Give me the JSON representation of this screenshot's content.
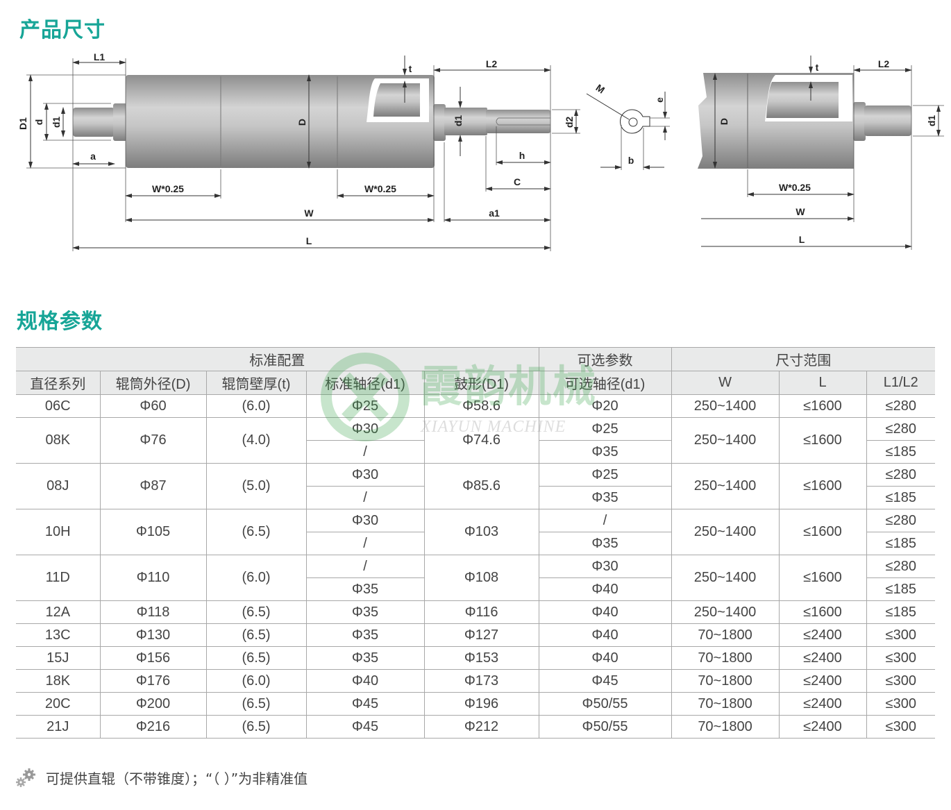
{
  "section_titles": {
    "dimensions": "产品尺寸",
    "specs": "规格参数"
  },
  "brand_color": "#17a597",
  "diagram_labels": {
    "L1": "L1",
    "D1": "D1",
    "d": "d",
    "d1": "d1",
    "a": "a",
    "D": "D",
    "t": "t",
    "L2": "L2",
    "d2": "d2",
    "h": "h",
    "C": "C",
    "W025": "W*0.25",
    "W": "W",
    "a1": "a1",
    "L": "L",
    "M": "M",
    "e": "e",
    "b": "b"
  },
  "watermark": {
    "logo_text": "霞韵机械",
    "logo_subtext": "XIAYUN MACHINE"
  },
  "table": {
    "groups": [
      {
        "label": "标准配置",
        "span": 5
      },
      {
        "label": "可选参数",
        "span": 1
      },
      {
        "label": "尺寸范围",
        "span": 3
      }
    ],
    "columns": [
      "直径系列",
      "辊筒外径(D)",
      "辊筒壁厚(t)",
      "标准轴径(d1)",
      "鼓形(D1)",
      "可选轴径(d1)",
      "W",
      "L",
      "L1/L2"
    ],
    "rows": [
      {
        "series": "06C",
        "D": "Φ60",
        "t": "(6.0)",
        "d1": [
          "Φ25"
        ],
        "D1": "Φ58.6",
        "opt": [
          "Φ20"
        ],
        "W": "250~1400",
        "L": "≤1600",
        "L12": [
          "≤280"
        ]
      },
      {
        "series": "08K",
        "D": "Φ76",
        "t": "(4.0)",
        "d1": [
          "Φ30",
          "/"
        ],
        "D1": "Φ74.6",
        "opt": [
          "Φ25",
          "Φ35"
        ],
        "W": "250~1400",
        "L": "≤1600",
        "L12": [
          "≤280",
          "≤185"
        ]
      },
      {
        "series": "08J",
        "D": "Φ87",
        "t": "(5.0)",
        "d1": [
          "Φ30",
          "/"
        ],
        "D1": "Φ85.6",
        "opt": [
          "Φ25",
          "Φ35"
        ],
        "W": "250~1400",
        "L": "≤1600",
        "L12": [
          "≤280",
          "≤185"
        ]
      },
      {
        "series": "10H",
        "D": "Φ105",
        "t": "(6.5)",
        "d1": [
          "Φ30",
          "/"
        ],
        "D1": "Φ103",
        "opt": [
          "/",
          "Φ35"
        ],
        "W": "250~1400",
        "L": "≤1600",
        "L12": [
          "≤280",
          "≤185"
        ]
      },
      {
        "series": "11D",
        "D": "Φ110",
        "t": "(6.0)",
        "d1": [
          "/",
          "Φ35"
        ],
        "D1": "Φ108",
        "opt": [
          "Φ30",
          "Φ40"
        ],
        "W": "250~1400",
        "L": "≤1600",
        "L12": [
          "≤280",
          "≤185"
        ]
      },
      {
        "series": "12A",
        "D": "Φ118",
        "t": "(6.5)",
        "d1": [
          "Φ35"
        ],
        "D1": "Φ116",
        "opt": [
          "Φ40"
        ],
        "W": "250~1400",
        "L": "≤1600",
        "L12": [
          "≤185"
        ]
      },
      {
        "series": "13C",
        "D": "Φ130",
        "t": "(6.5)",
        "d1": [
          "Φ35"
        ],
        "D1": "Φ127",
        "opt": [
          "Φ40"
        ],
        "W": "70~1800",
        "L": "≤2400",
        "L12": [
          "≤300"
        ]
      },
      {
        "series": "15J",
        "D": "Φ156",
        "t": "(6.5)",
        "d1": [
          "Φ35"
        ],
        "D1": "Φ153",
        "opt": [
          "Φ40"
        ],
        "W": "70~1800",
        "L": "≤2400",
        "L12": [
          "≤300"
        ]
      },
      {
        "series": "18K",
        "D": "Φ176",
        "t": "(6.0)",
        "d1": [
          "Φ40"
        ],
        "D1": "Φ173",
        "opt": [
          "Φ45"
        ],
        "W": "70~1800",
        "L": "≤2400",
        "L12": [
          "≤300"
        ]
      },
      {
        "series": "20C",
        "D": "Φ200",
        "t": "(6.5)",
        "d1": [
          "Φ45"
        ],
        "D1": "Φ196",
        "opt": [
          "Φ50/55"
        ],
        "W": "70~1800",
        "L": "≤2400",
        "L12": [
          "≤300"
        ]
      },
      {
        "series": "21J",
        "D": "Φ216",
        "t": "(6.5)",
        "d1": [
          "Φ45"
        ],
        "D1": "Φ212",
        "opt": [
          "Φ50/55"
        ],
        "W": "70~1800",
        "L": "≤2400",
        "L12": [
          "≤300"
        ]
      }
    ]
  },
  "note": {
    "icon": "gears-icon",
    "text": "可提供直辊（不带锥度）；“（  ）”为非精准值"
  }
}
